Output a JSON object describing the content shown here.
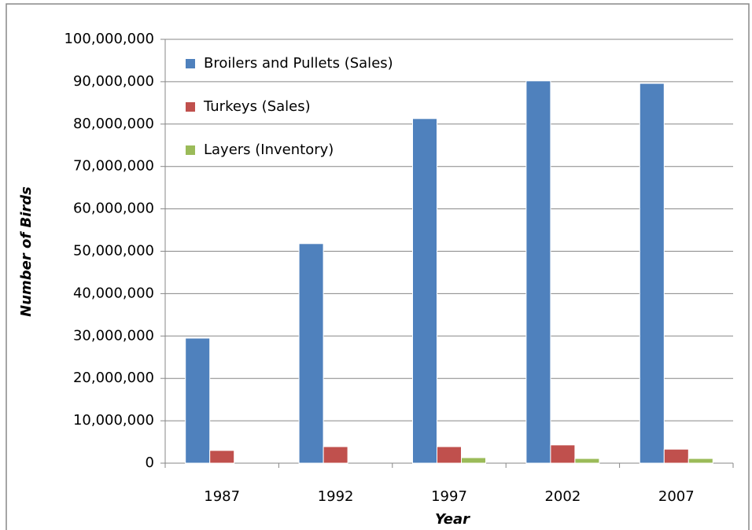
{
  "chart_data": {
    "type": "bar",
    "x_label": "Year",
    "y_label": "Number of Birds",
    "categories": [
      "1987",
      "1992",
      "1997",
      "2002",
      "2007"
    ],
    "series": [
      {
        "name": "Broilers and Pullets (Sales)",
        "color": "#4f81bd",
        "values": [
          29500000,
          51800000,
          81300000,
          90200000,
          89600000
        ]
      },
      {
        "name": "Turkeys (Sales)",
        "color": "#c0504d",
        "values": [
          3000000,
          3900000,
          3900000,
          4300000,
          3300000
        ]
      },
      {
        "name": "Layers (Inventory)",
        "color": "#9bbb59",
        "values": [
          null,
          null,
          1300000,
          1100000,
          1100000
        ]
      }
    ],
    "ylim": [
      0,
      100000000
    ],
    "yticks": [
      {
        "value": 0,
        "label": "0"
      },
      {
        "value": 10000000,
        "label": "10,000,000"
      },
      {
        "value": 20000000,
        "label": "20,000,000"
      },
      {
        "value": 30000000,
        "label": "30,000,000"
      },
      {
        "value": 40000000,
        "label": "40,000,000"
      },
      {
        "value": 50000000,
        "label": "50,000,000"
      },
      {
        "value": 60000000,
        "label": "60,000,000"
      },
      {
        "value": 70000000,
        "label": "70,000,000"
      },
      {
        "value": 80000000,
        "label": "80,000,000"
      },
      {
        "value": 90000000,
        "label": "90,000,000"
      },
      {
        "value": 100000000,
        "label": "100,000,000"
      }
    ],
    "grid": true,
    "legend": "top-left"
  }
}
